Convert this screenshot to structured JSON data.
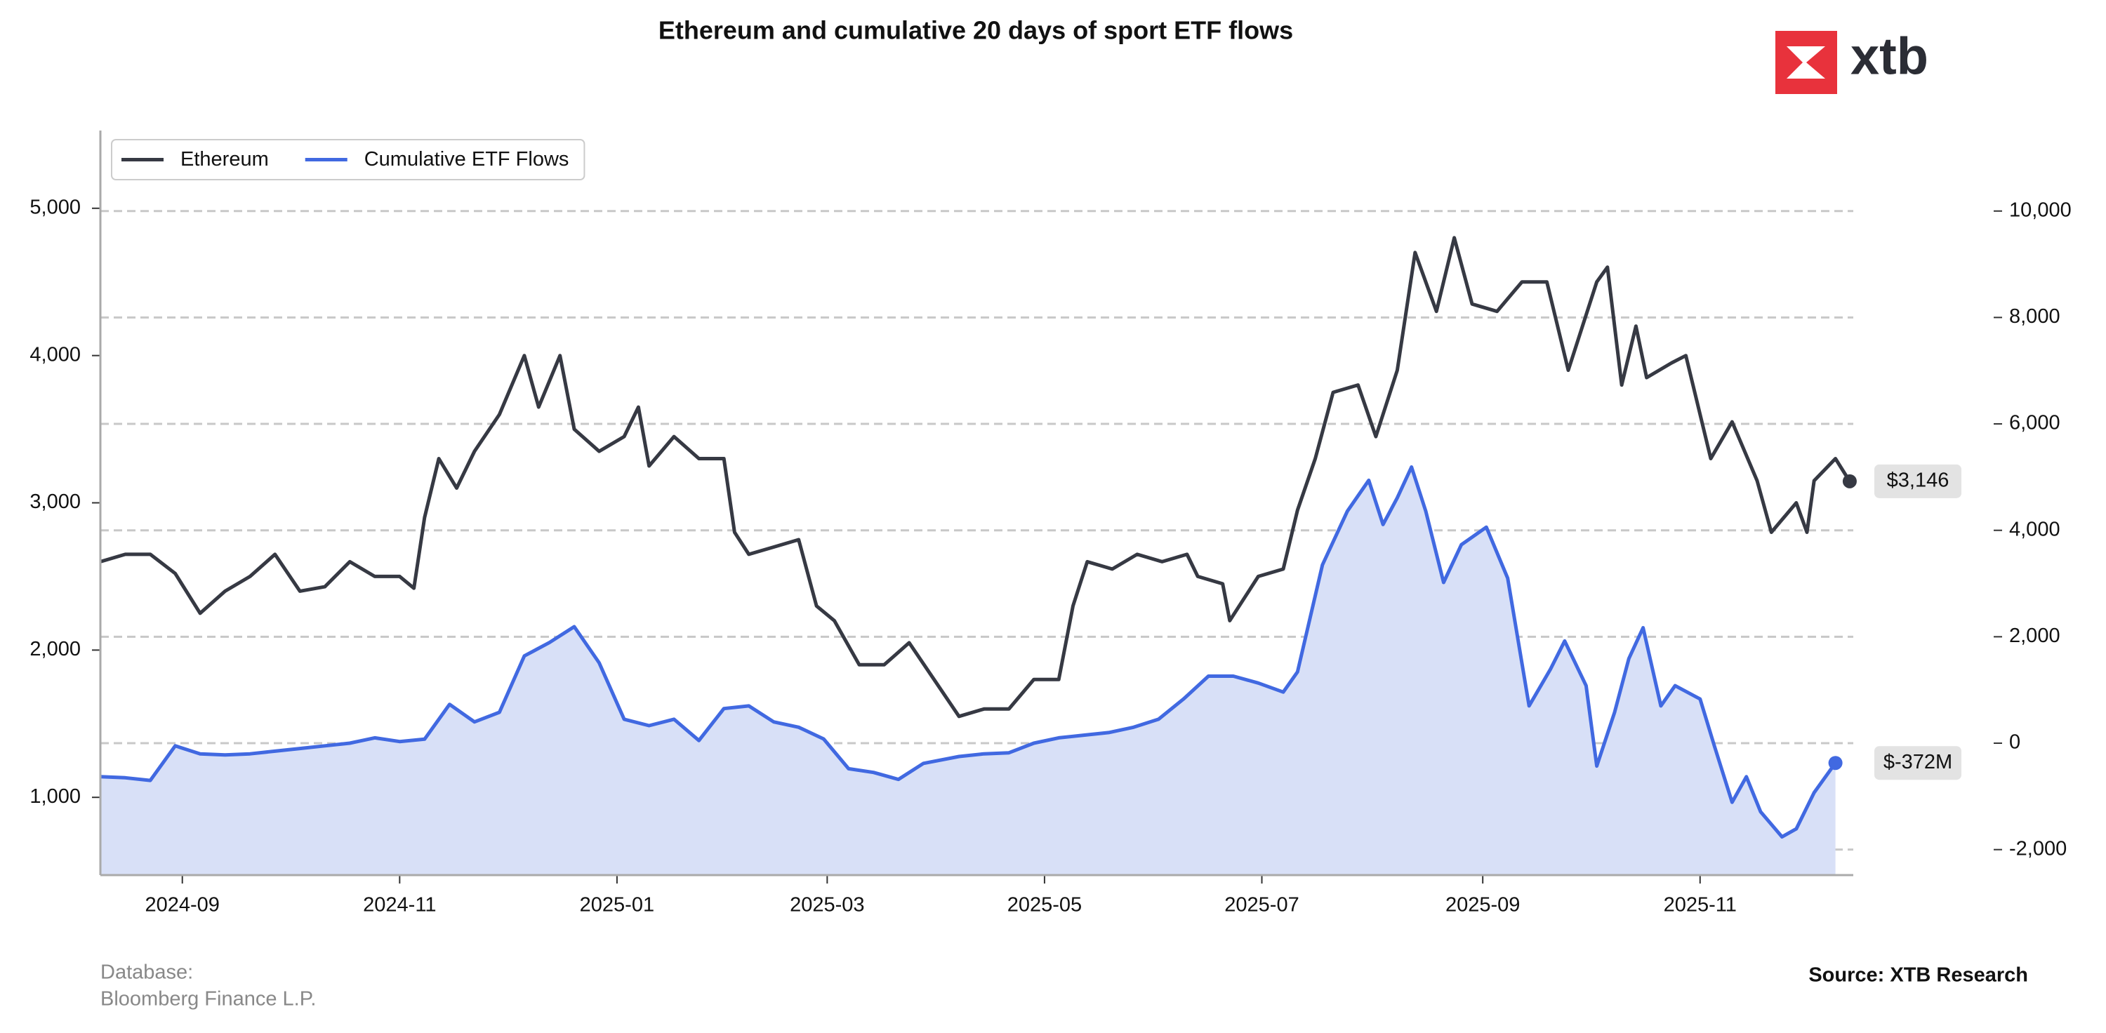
{
  "chart_data": {
    "type": "line",
    "title": "Ethereum and cumulative 20 days of sport ETF flows",
    "logo": "xtb",
    "database_label": "Database:",
    "database": "Bloomberg Finance L.P.",
    "source": "Source: XTB Research",
    "legend": "upper left",
    "grid": true,
    "xlim": [
      "2024-08-09",
      "2025-12-14"
    ],
    "xticks": [
      "2024-09",
      "2024-11",
      "2025-01",
      "2025-03",
      "2025-05",
      "2025-07",
      "2025-09",
      "2025-11"
    ],
    "ylim": [
      472,
      5528
    ],
    "yticks": [
      {
        "value": 1000,
        "label": "1,000"
      },
      {
        "value": 2000,
        "label": "2,000"
      },
      {
        "value": 3000,
        "label": "3,000"
      },
      {
        "value": 4000,
        "label": "4,000"
      },
      {
        "value": 5000,
        "label": "5,000"
      }
    ],
    "y2lim": [
      -2479,
      11513
    ],
    "y2ticks": [
      {
        "value": -2000,
        "label": "-2,000"
      },
      0,
      {
        "value": 2000,
        "label": "2,000"
      },
      {
        "value": 4000,
        "label": "4,000"
      },
      {
        "value": 6000,
        "label": "6,000"
      },
      {
        "value": 8000,
        "label": "8,000"
      },
      {
        "value": 10000,
        "label": "10,000"
      }
    ],
    "series": [
      {
        "name": "Ethereum",
        "color": "#363943",
        "x": [
          "2024-08-09",
          "2024-08-16",
          "2024-08-23",
          "2024-08-30",
          "2024-09-06",
          "2024-09-13",
          "2024-09-20",
          "2024-09-27",
          "2024-10-04",
          "2024-10-11",
          "2024-10-18",
          "2024-10-25",
          "2024-11-01",
          "2024-11-05",
          "2024-11-08",
          "2024-11-12",
          "2024-11-17",
          "2024-11-22",
          "2024-11-29",
          "2024-12-06",
          "2024-12-10",
          "2024-12-16",
          "2024-12-20",
          "2024-12-27",
          "2025-01-03",
          "2025-01-07",
          "2025-01-10",
          "2025-01-17",
          "2025-01-24",
          "2025-01-31",
          "2025-02-03",
          "2025-02-07",
          "2025-02-14",
          "2025-02-21",
          "2025-02-26",
          "2025-03-03",
          "2025-03-10",
          "2025-03-17",
          "2025-03-24",
          "2025-03-31",
          "2025-04-07",
          "2025-04-14",
          "2025-04-21",
          "2025-04-28",
          "2025-05-05",
          "2025-05-09",
          "2025-05-13",
          "2025-05-20",
          "2025-05-27",
          "2025-06-03",
          "2025-06-10",
          "2025-06-13",
          "2025-06-20",
          "2025-06-22",
          "2025-06-30",
          "2025-07-07",
          "2025-07-11",
          "2025-07-16",
          "2025-07-21",
          "2025-07-28",
          "2025-08-02",
          "2025-08-08",
          "2025-08-13",
          "2025-08-19",
          "2025-08-24",
          "2025-08-29",
          "2025-09-05",
          "2025-09-12",
          "2025-09-19",
          "2025-09-25",
          "2025-10-03",
          "2025-10-06",
          "2025-10-10",
          "2025-10-14",
          "2025-10-17",
          "2025-10-24",
          "2025-10-28",
          "2025-11-04",
          "2025-11-10",
          "2025-11-17",
          "2025-11-21",
          "2025-11-28",
          "2025-12-01",
          "2025-12-03",
          "2025-12-09",
          "2025-12-13"
        ],
        "values": [
          2600,
          2650,
          2650,
          2520,
          2250,
          2400,
          2500,
          2650,
          2400,
          2430,
          2600,
          2500,
          2500,
          2420,
          2900,
          3300,
          3100,
          3350,
          3600,
          4000,
          3650,
          4000,
          3500,
          3350,
          3450,
          3650,
          3250,
          3450,
          3300,
          3300,
          2800,
          2650,
          2700,
          2750,
          2300,
          2200,
          1900,
          1900,
          2050,
          1800,
          1550,
          1600,
          1600,
          1800,
          1800,
          2300,
          2600,
          2550,
          2650,
          2600,
          2650,
          2500,
          2450,
          2200,
          2500,
          2550,
          2950,
          3300,
          3750,
          3800,
          3450,
          3900,
          4700,
          4300,
          4800,
          4350,
          4300,
          4500,
          4500,
          3900,
          4500,
          4600,
          3800,
          4200,
          3850,
          3950,
          4000,
          3300,
          3550,
          3150,
          2800,
          3000,
          2800,
          3150,
          3300,
          3146
        ],
        "value_labels": [
          null,
          null,
          null,
          null,
          null,
          null,
          null,
          null,
          null,
          null,
          null,
          null,
          null,
          null,
          null,
          null,
          null,
          null,
          null,
          null,
          null,
          null,
          null,
          null,
          null,
          null,
          null,
          null,
          null,
          null,
          null,
          null,
          null,
          null,
          null,
          null,
          null,
          null,
          null,
          null,
          null,
          null,
          null,
          null,
          null,
          null,
          null,
          null,
          null,
          null,
          null,
          null,
          null,
          null,
          null,
          null,
          null,
          null,
          null,
          null,
          null,
          null,
          null,
          null,
          null,
          null,
          null,
          null,
          null,
          null,
          null,
          null,
          null,
          null,
          null,
          null,
          null,
          null,
          null,
          null,
          null,
          null,
          null,
          null,
          null,
          "$3,146"
        ]
      },
      {
        "name": "Cumulative ETF Flows",
        "color": "#4169e1",
        "fill": "#d8e0f7",
        "axis": "y2",
        "x": [
          "2024-08-09",
          "2024-08-16",
          "2024-08-23",
          "2024-08-30",
          "2024-09-06",
          "2024-09-13",
          "2024-09-20",
          "2024-09-27",
          "2024-10-04",
          "2024-10-11",
          "2024-10-18",
          "2024-10-25",
          "2024-11-01",
          "2024-11-08",
          "2024-11-15",
          "2024-11-22",
          "2024-11-29",
          "2024-12-06",
          "2024-12-13",
          "2024-12-20",
          "2024-12-27",
          "2025-01-03",
          "2025-01-10",
          "2025-01-17",
          "2025-01-24",
          "2025-01-31",
          "2025-02-07",
          "2025-02-14",
          "2025-02-21",
          "2025-02-28",
          "2025-03-07",
          "2025-03-14",
          "2025-03-21",
          "2025-03-28",
          "2025-04-07",
          "2025-04-14",
          "2025-04-21",
          "2025-04-28",
          "2025-05-05",
          "2025-05-12",
          "2025-05-19",
          "2025-05-26",
          "2025-06-02",
          "2025-06-09",
          "2025-06-16",
          "2025-06-23",
          "2025-06-30",
          "2025-07-07",
          "2025-07-11",
          "2025-07-18",
          "2025-07-25",
          "2025-07-31",
          "2025-08-04",
          "2025-08-08",
          "2025-08-12",
          "2025-08-16",
          "2025-08-21",
          "2025-08-26",
          "2025-09-02",
          "2025-09-08",
          "2025-09-14",
          "2025-09-20",
          "2025-09-24",
          "2025-09-30",
          "2025-10-03",
          "2025-10-08",
          "2025-10-12",
          "2025-10-16",
          "2025-10-21",
          "2025-10-25",
          "2025-11-01",
          "2025-11-05",
          "2025-11-10",
          "2025-11-14",
          "2025-11-18",
          "2025-11-24",
          "2025-11-28",
          "2025-12-03",
          "2025-12-09"
        ],
        "values": [
          -630,
          -650,
          -700,
          -50,
          -200,
          -220,
          -200,
          -150,
          -100,
          -50,
          0,
          100,
          30,
          75,
          730,
          400,
          580,
          1640,
          1890,
          2190,
          1510,
          450,
          330,
          450,
          50,
          650,
          700,
          400,
          300,
          80,
          -480,
          -550,
          -680,
          -380,
          -250,
          -200,
          -180,
          0,
          100,
          150,
          200,
          300,
          450,
          830,
          1260,
          1260,
          1130,
          960,
          1340,
          3350,
          4360,
          4940,
          4110,
          4610,
          5190,
          4360,
          3020,
          3730,
          4060,
          3100,
          700,
          1390,
          1920,
          1080,
          -430,
          580,
          1590,
          2170,
          700,
          1080,
          830,
          -50,
          -1110,
          -630,
          -1290,
          -1760,
          -1610,
          -930,
          -372
        ],
        "value_labels": [
          null,
          null,
          null,
          null,
          null,
          null,
          null,
          null,
          null,
          null,
          null,
          null,
          null,
          null,
          null,
          null,
          null,
          null,
          null,
          null,
          null,
          null,
          null,
          null,
          null,
          null,
          null,
          null,
          null,
          null,
          null,
          null,
          null,
          null,
          null,
          null,
          null,
          null,
          null,
          null,
          null,
          null,
          null,
          null,
          null,
          null,
          null,
          null,
          null,
          null,
          null,
          null,
          null,
          null,
          null,
          null,
          null,
          null,
          null,
          null,
          null,
          null,
          null,
          null,
          null,
          null,
          null,
          null,
          null,
          null,
          null,
          null,
          null,
          null,
          null,
          null,
          null,
          null,
          "$-372M"
        ]
      }
    ]
  }
}
